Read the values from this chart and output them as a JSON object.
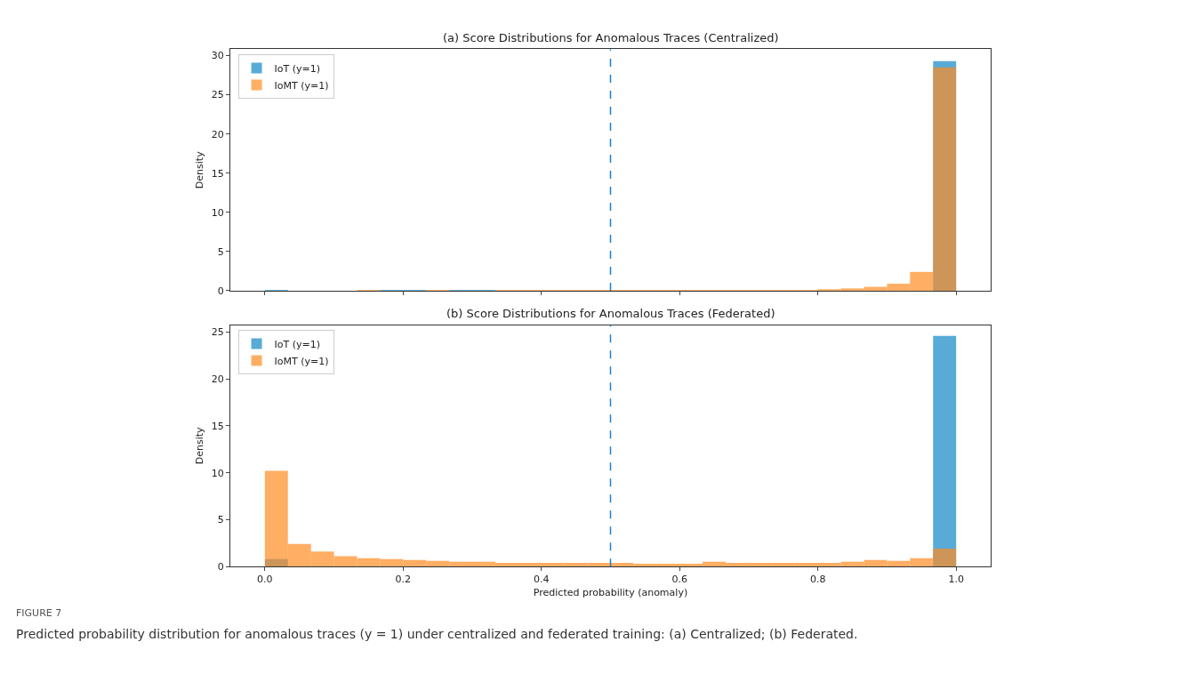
{
  "chart_data": [
    {
      "type": "histogram",
      "title": "(a) Score Distributions for Anomalous Traces (Centralized)",
      "ylabel": "Density",
      "bins": [
        0,
        0.0333,
        0.0667,
        0.1,
        0.1333,
        0.1667,
        0.2,
        0.2333,
        0.2667,
        0.3,
        0.3333,
        0.3667,
        0.4,
        0.4333,
        0.4667,
        0.5,
        0.5333,
        0.5667,
        0.6,
        0.6333,
        0.6667,
        0.7,
        0.7333,
        0.7667,
        0.8,
        0.8333,
        0.8667,
        0.9,
        0.9333,
        0.9667,
        1.0
      ],
      "series": [
        {
          "name": "IoT (y=1)",
          "color": "#58acd6",
          "values": [
            0.1,
            0,
            0,
            0,
            0,
            0.1,
            0.1,
            0,
            0.1,
            0.1,
            0,
            0,
            0,
            0,
            0,
            0,
            0,
            0,
            0,
            0,
            0,
            0,
            0,
            0,
            0,
            0,
            0,
            0,
            null,
            29.3
          ]
        },
        {
          "name": "IoMT (y=1)",
          "color": "#ffae64",
          "values": [
            0,
            0,
            0,
            0,
            0.1,
            0,
            0,
            0.1,
            0,
            0,
            0.1,
            0.1,
            0.1,
            0.1,
            0.1,
            0.1,
            0.1,
            0.1,
            0.1,
            0.1,
            0.1,
            0.1,
            0.1,
            0.1,
            0.2,
            0.3,
            0.5,
            0.9,
            2.4,
            28.5
          ]
        }
      ],
      "xlim": [
        -0.05,
        1.05
      ],
      "xticks": [
        {
          "value": 0,
          "label": null
        },
        {
          "value": 0.2,
          "label": null
        },
        {
          "value": 0.4,
          "label": null
        },
        {
          "value": 0.6,
          "label": null
        },
        {
          "value": 0.8,
          "label": null
        },
        {
          "value": 1.0,
          "label": null
        }
      ],
      "ylim": [
        0,
        30.8
      ],
      "yticks": [
        0,
        5,
        10,
        15,
        20,
        25,
        30
      ],
      "tick_labels": "y",
      "ref_lines": [
        {
          "axis": "x",
          "value": 0.5,
          "color": "#1f80c8",
          "line_style": "dashed"
        }
      ],
      "legend": "top left",
      "grid": false
    },
    {
      "type": "histogram",
      "title": "(b) Score Distributions for Anomalous Traces (Federated)",
      "ylabel": "Density",
      "xlabel": "Predicted probability (anomaly)",
      "bins": [
        0,
        0.0333,
        0.0667,
        0.1,
        0.1333,
        0.1667,
        0.2,
        0.2333,
        0.2667,
        0.3,
        0.3333,
        0.3667,
        0.4,
        0.4333,
        0.4667,
        0.5,
        0.5333,
        0.5667,
        0.6,
        0.6333,
        0.6667,
        0.7,
        0.7333,
        0.7667,
        0.8,
        0.8333,
        0.8667,
        0.9,
        0.9333,
        0.9667,
        1.0
      ],
      "series": [
        {
          "name": "IoT (y=1)",
          "color": "#58acd6",
          "values": [
            0.8,
            null,
            null,
            null,
            null,
            null,
            null,
            null,
            null,
            null,
            null,
            null,
            null,
            null,
            null,
            null,
            null,
            null,
            null,
            null,
            null,
            null,
            null,
            null,
            null,
            null,
            null,
            null,
            null,
            24.6
          ]
        },
        {
          "name": "IoMT (y=1)",
          "color": "#ffae64",
          "values": [
            10.2,
            2.4,
            1.6,
            1.1,
            0.9,
            0.8,
            0.7,
            0.6,
            0.5,
            0.5,
            0.4,
            0.4,
            0.4,
            0.4,
            0.4,
            0.4,
            0.3,
            0.3,
            0.3,
            0.5,
            0.4,
            0.4,
            0.4,
            0.4,
            0.4,
            0.5,
            0.7,
            0.6,
            0.9,
            1.9
          ]
        }
      ],
      "xlim": [
        -0.05,
        1.05
      ],
      "xticks": [
        {
          "value": 0,
          "label": "0.0"
        },
        {
          "value": 0.2,
          "label": "0.2"
        },
        {
          "value": 0.4,
          "label": "0.4"
        },
        {
          "value": 0.6,
          "label": "0.6"
        },
        {
          "value": 0.8,
          "label": "0.8"
        },
        {
          "value": 1,
          "label": "1.0"
        }
      ],
      "ylim": [
        0,
        25.75
      ],
      "yticks": [
        0,
        5,
        10,
        15,
        20,
        25
      ],
      "ref_lines": [
        {
          "axis": "x",
          "value": 0.5,
          "color": "#1f80c8",
          "line_style": "dashed"
        }
      ],
      "legend": "top left",
      "grid": false,
      "annotations": [
        "FIGURE 7",
        "Predicted probability distribution for anomalous traces (y = 1) under centralized and federated training: (a) Centralized; (b) Federated."
      ]
    }
  ]
}
